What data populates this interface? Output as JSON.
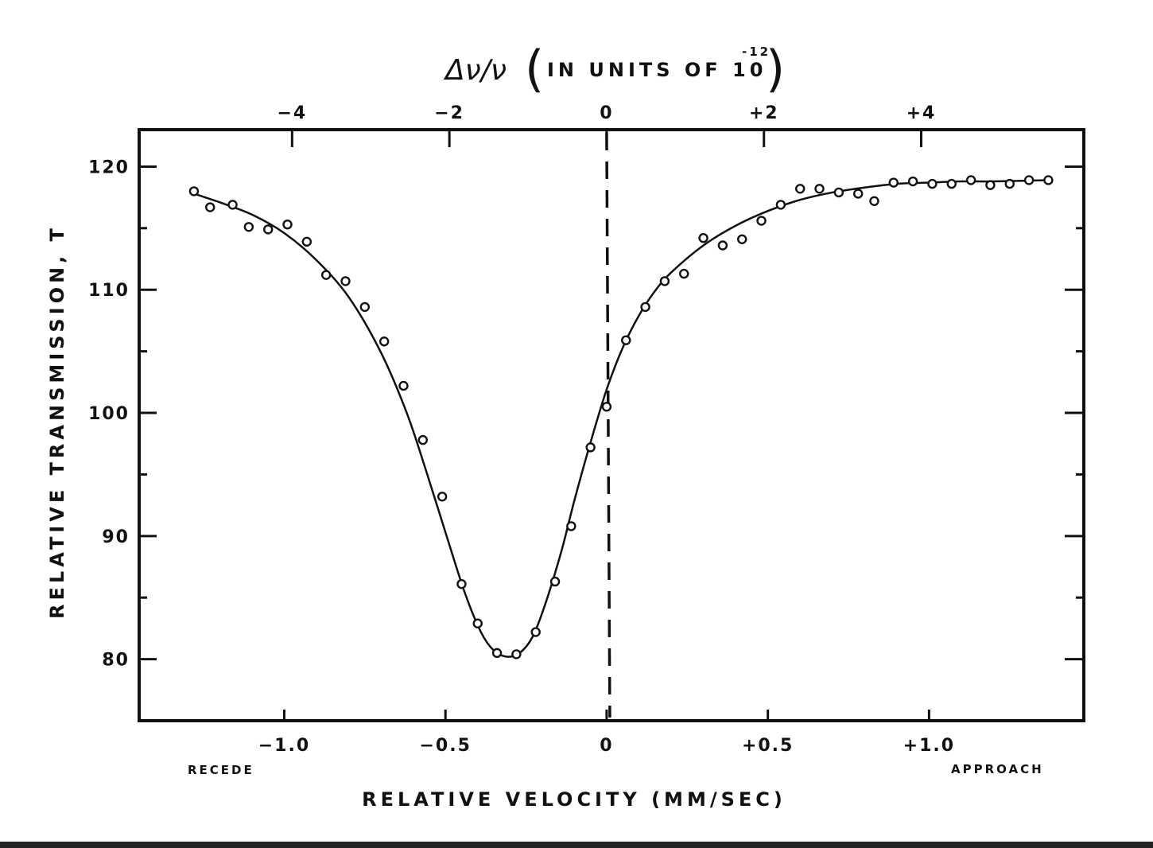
{
  "chart_data": {
    "type": "scatter",
    "title": "",
    "top_axis": {
      "label_symbol": "Δν/ν",
      "label_text": "IN UNITS OF 10",
      "label_exponent": "-12",
      "ticks": [
        {
          "value": -4,
          "label": "−4"
        },
        {
          "value": -2,
          "label": "−2"
        },
        {
          "value": 0,
          "label": "0"
        },
        {
          "value": 2,
          "label": "+2"
        },
        {
          "value": 4,
          "label": "+4"
        }
      ]
    },
    "xlabel": "RELATIVE VELOCITY (MM/SEC)",
    "ylabel": "RELATIVE TRANSMISSION, T",
    "xlim": [
      -1.45,
      1.48
    ],
    "ylim": [
      75,
      123
    ],
    "x_ticks": [
      {
        "value": -1.0,
        "label": "−1.0"
      },
      {
        "value": -0.5,
        "label": "−0.5"
      },
      {
        "value": 0,
        "label": "0"
      },
      {
        "value": 0.5,
        "label": "+0.5"
      },
      {
        "value": 1.0,
        "label": "+1.0"
      }
    ],
    "y_ticks": [
      {
        "value": 80,
        "label": "80"
      },
      {
        "value": 90,
        "label": "90"
      },
      {
        "value": 100,
        "label": "100"
      },
      {
        "value": 110,
        "label": "110"
      },
      {
        "value": 120,
        "label": "120"
      }
    ],
    "minor_y_ticks": [
      85,
      95,
      105,
      115
    ],
    "annotations": {
      "left": "RECEDE",
      "right": "APPROACH"
    },
    "reference_line_x": 0,
    "grid": false,
    "series": [
      {
        "marker": "open-circle",
        "x": [
          -1.28,
          -1.23,
          -1.16,
          -1.11,
          -1.05,
          -0.99,
          -0.93,
          -0.87,
          -0.81,
          -0.75,
          -0.69,
          -0.63,
          -0.57,
          -0.51,
          -0.45,
          -0.4,
          -0.34,
          -0.28,
          -0.22,
          -0.16,
          -0.11,
          -0.05,
          0.0,
          0.06,
          0.12,
          0.18,
          0.24,
          0.3,
          0.36,
          0.42,
          0.48,
          0.54,
          0.6,
          0.66,
          0.72,
          0.78,
          0.83,
          0.89,
          0.95,
          1.01,
          1.07,
          1.13,
          1.19,
          1.25,
          1.31,
          1.37
        ],
        "y": [
          118.0,
          116.7,
          116.9,
          115.1,
          114.9,
          115.3,
          113.9,
          111.2,
          110.7,
          108.6,
          105.8,
          102.2,
          97.8,
          93.2,
          86.1,
          82.9,
          80.5,
          80.4,
          82.2,
          86.3,
          90.8,
          97.2,
          100.5,
          105.9,
          108.6,
          110.7,
          111.3,
          114.2,
          113.6,
          114.1,
          115.6,
          116.9,
          118.2,
          118.2,
          117.9,
          117.8,
          117.2,
          118.7,
          118.8,
          118.6,
          118.6,
          118.9,
          118.5,
          118.6,
          118.9,
          118.9
        ]
      }
    ],
    "fit_curve": {
      "x": [
        -1.28,
        -1.2,
        -1.1,
        -1.0,
        -0.9,
        -0.8,
        -0.7,
        -0.62,
        -0.56,
        -0.5,
        -0.44,
        -0.39,
        -0.35,
        -0.31,
        -0.27,
        -0.23,
        -0.19,
        -0.14,
        -0.1,
        -0.05,
        0.0,
        0.05,
        0.1,
        0.15,
        0.2,
        0.3,
        0.4,
        0.5,
        0.6,
        0.7,
        0.8,
        0.9,
        1.0,
        1.1,
        1.2,
        1.37
      ],
      "y": [
        117.8,
        117.1,
        116.1,
        114.6,
        112.4,
        109.4,
        104.9,
        100.0,
        95.3,
        90.3,
        85.4,
        82.2,
        80.7,
        80.2,
        80.5,
        81.8,
        84.5,
        88.8,
        92.9,
        97.6,
        101.9,
        105.3,
        107.9,
        109.9,
        111.4,
        113.6,
        115.2,
        116.4,
        117.3,
        117.9,
        118.3,
        118.6,
        118.7,
        118.8,
        118.8,
        118.9
      ]
    }
  }
}
